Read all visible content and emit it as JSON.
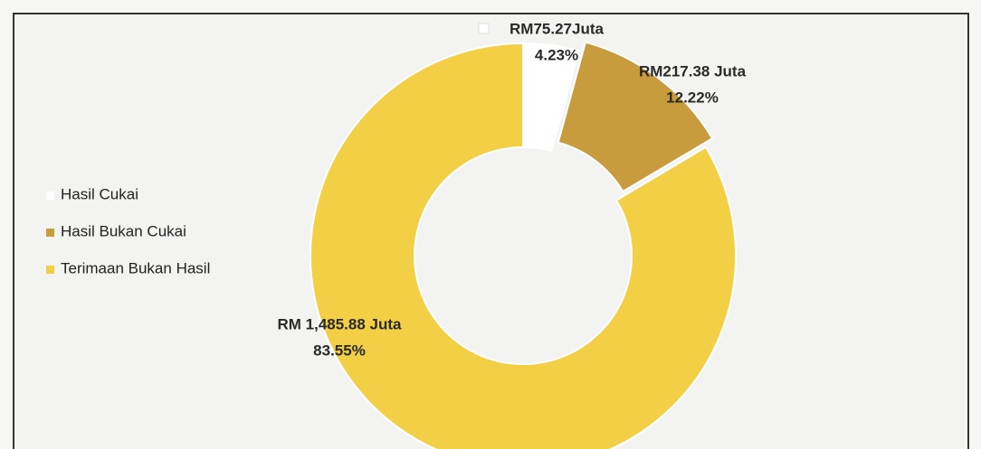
{
  "chart_data": {
    "type": "donut",
    "categories": [
      "Hasil Cukai",
      "Hasil Bukan Cukai",
      "Terimaan Bukan Hasil"
    ],
    "values": [
      4.23,
      12.22,
      83.55
    ],
    "value_labels": [
      "4.23%",
      "12.22%",
      "83.55%"
    ],
    "amount_labels": [
      "RM75.27Juta",
      "RM217.38 Juta",
      "RM 1,485.88 Juta"
    ],
    "colors": [
      "#ffffff",
      "#c89b3c",
      "#f2cf45"
    ],
    "legend": "left"
  }
}
